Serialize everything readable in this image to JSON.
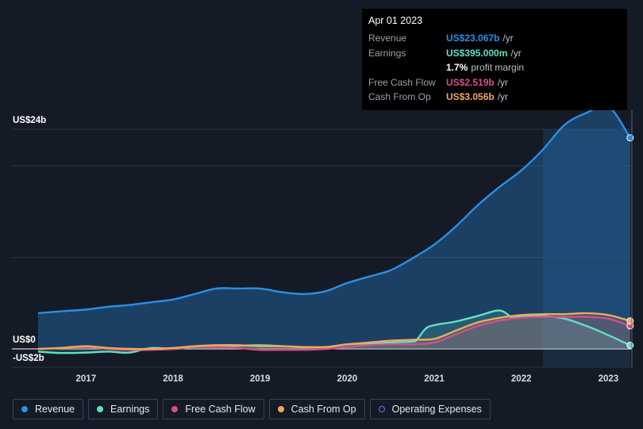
{
  "chart_data": {
    "type": "area",
    "title": "",
    "y_unit": "US$ billions",
    "y_tick_labels": [
      "US$24b",
      "US$0",
      "-US$2b"
    ],
    "ylim": [
      -2,
      24
    ],
    "xlim": [
      2016.45,
      2023.27
    ],
    "x_tick_labels": [
      "2017",
      "2018",
      "2019",
      "2020",
      "2021",
      "2022",
      "2023"
    ],
    "x_ticks": [
      2017,
      2018,
      2019,
      2020,
      2021,
      2022,
      2023
    ],
    "highlight_range": [
      2022.25,
      2023.25
    ],
    "series": [
      {
        "name": "Revenue",
        "color": "#2a8fe6",
        "x": [
          2016.45,
          2016.7,
          2017.0,
          2017.25,
          2017.5,
          2017.75,
          2018.0,
          2018.25,
          2018.5,
          2018.75,
          2019.0,
          2019.25,
          2019.5,
          2019.75,
          2020.0,
          2020.25,
          2020.5,
          2020.75,
          2021.0,
          2021.25,
          2021.5,
          2021.75,
          2022.0,
          2022.25,
          2022.5,
          2022.75,
          2023.0,
          2023.25
        ],
        "values": [
          3.9,
          4.1,
          4.3,
          4.6,
          4.8,
          5.1,
          5.4,
          6.0,
          6.6,
          6.6,
          6.6,
          6.2,
          6.0,
          6.3,
          7.2,
          7.9,
          8.6,
          9.9,
          11.4,
          13.4,
          15.7,
          17.7,
          19.5,
          21.8,
          24.5,
          25.8,
          26.5,
          23.067
        ]
      },
      {
        "name": "Earnings",
        "color": "#5fe0c8",
        "x": [
          2016.45,
          2016.7,
          2017.0,
          2017.25,
          2017.5,
          2017.75,
          2018.0,
          2018.25,
          2018.5,
          2018.75,
          2019.0,
          2019.25,
          2019.5,
          2019.75,
          2020.0,
          2020.25,
          2020.5,
          2020.75,
          2020.8,
          2020.9,
          2021.0,
          2021.25,
          2021.5,
          2021.75,
          2021.9,
          2022.0,
          2022.25,
          2022.5,
          2022.75,
          2023.0,
          2023.25
        ],
        "values": [
          -0.3,
          -0.45,
          -0.4,
          -0.3,
          -0.4,
          0.1,
          0.0,
          0.2,
          0.3,
          0.35,
          0.4,
          0.3,
          0.2,
          0.2,
          0.5,
          0.6,
          0.7,
          0.8,
          1.0,
          2.2,
          2.6,
          3.0,
          3.6,
          4.2,
          3.4,
          3.6,
          3.6,
          3.3,
          2.5,
          1.5,
          0.395
        ]
      },
      {
        "name": "Free Cash Flow",
        "color": "#d64f86",
        "x": [
          2016.45,
          2016.7,
          2017.0,
          2017.25,
          2017.5,
          2017.75,
          2018.0,
          2018.25,
          2018.5,
          2018.75,
          2019.0,
          2019.25,
          2019.5,
          2019.75,
          2020.0,
          2020.25,
          2020.5,
          2020.75,
          2021.0,
          2021.25,
          2021.5,
          2021.75,
          2022.0,
          2022.25,
          2022.5,
          2022.75,
          2023.0,
          2023.25
        ],
        "values": [
          0.0,
          0.1,
          0.2,
          0.0,
          -0.1,
          -0.1,
          0.0,
          0.2,
          0.2,
          0.1,
          -0.1,
          -0.1,
          -0.1,
          0.0,
          0.2,
          0.4,
          0.5,
          0.5,
          0.7,
          1.6,
          2.5,
          3.1,
          3.4,
          3.5,
          3.5,
          3.5,
          3.3,
          2.519
        ]
      },
      {
        "name": "Cash From Op",
        "color": "#f0a95a",
        "x": [
          2016.45,
          2016.7,
          2017.0,
          2017.25,
          2017.5,
          2017.75,
          2018.0,
          2018.25,
          2018.5,
          2018.75,
          2019.0,
          2019.25,
          2019.5,
          2019.75,
          2020.0,
          2020.25,
          2020.5,
          2020.75,
          2021.0,
          2021.25,
          2021.5,
          2021.75,
          2022.0,
          2022.25,
          2022.5,
          2022.75,
          2023.0,
          2023.25
        ],
        "values": [
          0.0,
          0.1,
          0.3,
          0.1,
          0.0,
          0.0,
          0.1,
          0.3,
          0.4,
          0.4,
          0.3,
          0.3,
          0.2,
          0.2,
          0.5,
          0.7,
          0.9,
          1.0,
          1.1,
          2.0,
          2.9,
          3.4,
          3.7,
          3.8,
          3.8,
          3.9,
          3.7,
          3.056
        ]
      },
      {
        "name": "Operating Expenses",
        "color": "#8b5cf6",
        "x": [],
        "values": []
      }
    ],
    "legend": [
      "Revenue",
      "Earnings",
      "Free Cash Flow",
      "Cash From Op",
      "Operating Expenses"
    ]
  },
  "tooltip": {
    "date": "Apr 01 2023",
    "rows": [
      {
        "label": "Revenue",
        "value": "US$23.067b",
        "unit": "/yr",
        "color": "#2a8fe6"
      },
      {
        "label": "Earnings",
        "value": "US$395.000m",
        "unit": "/yr",
        "color": "#5fe0c8"
      },
      {
        "label": "",
        "value": "1.7%",
        "unit": "profit margin",
        "color": "#ffffff"
      },
      {
        "label": "Free Cash Flow",
        "value": "US$2.519b",
        "unit": "/yr",
        "color": "#d64f86"
      },
      {
        "label": "Cash From Op",
        "value": "US$3.056b",
        "unit": "/yr",
        "color": "#f0a95a"
      }
    ]
  }
}
